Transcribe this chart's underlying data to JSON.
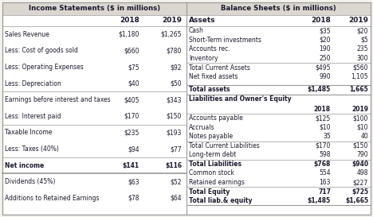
{
  "income_title": "Income Statements ($ in millions)",
  "balance_title": "Balance Sheets ($ in millions)",
  "income_rows": [
    {
      "label": "Sales Revenue",
      "v2018": "$1,180",
      "v2019": "$1,265",
      "bold": false,
      "top_border": false,
      "bottom_border": false
    },
    {
      "label": "Less: Cost of goods sold",
      "v2018": "$660",
      "v2019": "$780",
      "bold": false,
      "top_border": false,
      "bottom_border": false
    },
    {
      "label": "Less: Operating Expenses",
      "v2018": "$75",
      "v2019": "$92",
      "bold": false,
      "top_border": false,
      "bottom_border": false
    },
    {
      "label": "Less: Depreciation",
      "v2018": "$40",
      "v2019": "$50",
      "bold": false,
      "top_border": false,
      "bottom_border": true
    },
    {
      "label": "Earnings before interest and taxes",
      "v2018": "$405",
      "v2019": "$343",
      "bold": false,
      "top_border": false,
      "bottom_border": false
    },
    {
      "label": "Less: Interest paid",
      "v2018": "$170",
      "v2019": "$150",
      "bold": false,
      "top_border": false,
      "bottom_border": true
    },
    {
      "label": "Taxable Income",
      "v2018": "$235",
      "v2019": "$193",
      "bold": false,
      "top_border": false,
      "bottom_border": false
    },
    {
      "label": "Less: Taxes (40%)",
      "v2018": "$94",
      "v2019": "$77",
      "bold": false,
      "top_border": false,
      "bottom_border": true
    },
    {
      "label": "Net income",
      "v2018": "$141",
      "v2019": "$116",
      "bold": true,
      "top_border": false,
      "bottom_border": true
    },
    {
      "label": "Dividends (45%)",
      "v2018": "$63",
      "v2019": "$52",
      "bold": false,
      "top_border": false,
      "bottom_border": false
    },
    {
      "label": "Additions to Retained Earnings",
      "v2018": "$78",
      "v2019": "$64",
      "bold": false,
      "top_border": false,
      "bottom_border": false
    }
  ],
  "assets_rows": [
    {
      "label": "Cash",
      "v2018": "$35",
      "v2019": "$20",
      "bold": false,
      "bottom_border": false
    },
    {
      "label": "Short-Term investments",
      "v2018": "$20",
      "v2019": "$5",
      "bold": false,
      "bottom_border": false
    },
    {
      "label": "Accounts rec.",
      "v2018": "190",
      "v2019": "235",
      "bold": false,
      "bottom_border": false
    },
    {
      "label": "Inventory",
      "v2018": "250",
      "v2019": "300",
      "bold": false,
      "bottom_border": true
    },
    {
      "label": "Total Current Assets",
      "v2018": "$495",
      "v2019": "$560",
      "bold": false,
      "bottom_border": false
    },
    {
      "label": "Net fixed assets",
      "v2018": "990",
      "v2019": "1,105",
      "bold": false,
      "bottom_border": false
    }
  ],
  "total_assets": {
    "label": "Total assets",
    "v2018": "$1,485",
    "v2019": "1,665",
    "bold": true
  },
  "liab_rows": [
    {
      "label": "Accounts payable",
      "v2018": "$125",
      "v2019": "$100",
      "bold": false,
      "bottom_border": false
    },
    {
      "label": "Accruals",
      "v2018": "$10",
      "v2019": "$10",
      "bold": false,
      "bottom_border": false
    },
    {
      "label": "Notes payable",
      "v2018": "35",
      "v2019": "40",
      "bold": false,
      "bottom_border": true
    },
    {
      "label": "Total Current Liabilities",
      "v2018": "$170",
      "v2019": "$150",
      "bold": false,
      "bottom_border": false
    },
    {
      "label": "Long-term debt",
      "v2018": "598",
      "v2019": "790",
      "bold": false,
      "bottom_border": true
    },
    {
      "label": "Total Liabilities",
      "v2018": "$768",
      "v2019": "$940",
      "bold": true,
      "bottom_border": false
    },
    {
      "label": "Common stock",
      "v2018": "554",
      "v2019": "498",
      "bold": false,
      "bottom_border": false
    },
    {
      "label": "Retained earnings",
      "v2018": "163",
      "v2019": "$227",
      "bold": false,
      "bottom_border": true
    },
    {
      "label": "Total Equity",
      "v2018": "717",
      "v2019": "$725",
      "bold": true,
      "bottom_border": false
    },
    {
      "label": "Total liab.& equity",
      "v2018": "$1,485",
      "v2019": "$1,665",
      "bold": true,
      "bottom_border": true
    }
  ],
  "bg_color": "#f5f2ed",
  "header_bg": "#dbd7d0",
  "border_color": "#999999",
  "text_color": "#1a1a2e",
  "font_size": 5.5,
  "header_font_size": 6.2,
  "col_header_font_size": 6.5
}
